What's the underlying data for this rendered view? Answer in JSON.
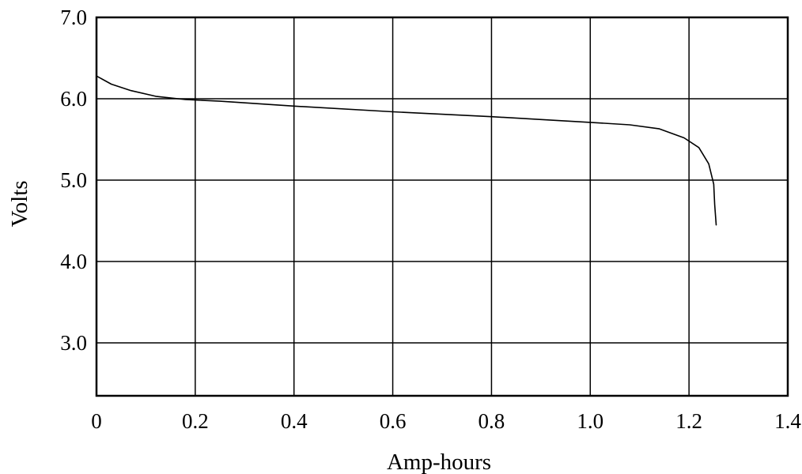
{
  "chart_data": {
    "type": "line",
    "title": "",
    "xlabel": "Amp-hours",
    "ylabel": "Volts",
    "xlim": [
      0,
      1.4
    ],
    "ylim": [
      2.35,
      7.0
    ],
    "grid": true,
    "x_ticks": [
      {
        "value": 0,
        "label": "0"
      },
      {
        "value": 0.2,
        "label": "0.2"
      },
      {
        "value": 0.4,
        "label": "0.4"
      },
      {
        "value": 0.6,
        "label": "0.6"
      },
      {
        "value": 0.8,
        "label": "0.8"
      },
      {
        "value": 1.0,
        "label": "1.0"
      },
      {
        "value": 1.2,
        "label": "1.2"
      },
      {
        "value": 1.4,
        "label": "1.4"
      }
    ],
    "y_ticks": [
      {
        "value": 3.0,
        "label": "3.0"
      },
      {
        "value": 4.0,
        "label": "4.0"
      },
      {
        "value": 5.0,
        "label": "5.0"
      },
      {
        "value": 6.0,
        "label": "6.0"
      },
      {
        "value": 7.0,
        "label": "7.0"
      }
    ],
    "series": [
      {
        "color": "#000000",
        "points": [
          [
            0.0,
            6.28
          ],
          [
            0.03,
            6.18
          ],
          [
            0.07,
            6.1
          ],
          [
            0.12,
            6.03
          ],
          [
            0.18,
            5.99
          ],
          [
            0.25,
            5.97
          ],
          [
            0.4,
            5.91
          ],
          [
            0.6,
            5.84
          ],
          [
            0.8,
            5.78
          ],
          [
            1.0,
            5.71
          ],
          [
            1.08,
            5.68
          ],
          [
            1.14,
            5.63
          ],
          [
            1.19,
            5.52
          ],
          [
            1.22,
            5.4
          ],
          [
            1.24,
            5.2
          ],
          [
            1.25,
            4.95
          ],
          [
            1.252,
            4.7
          ],
          [
            1.255,
            4.45
          ]
        ]
      }
    ]
  }
}
